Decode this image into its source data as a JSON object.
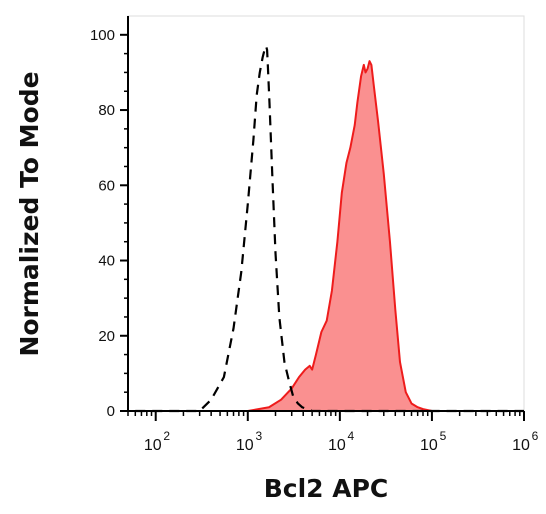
{
  "chart_data": {
    "type": "area",
    "title": "",
    "xlabel": "Bcl2 APC",
    "ylabel": "Normalized To Mode",
    "xscale": "log",
    "xlim": [
      50,
      1000000
    ],
    "ylim": [
      0,
      105
    ],
    "yticks": [
      {
        "value": 0,
        "label": "0"
      },
      {
        "value": 20,
        "label": "20"
      },
      {
        "value": 40,
        "label": "40"
      },
      {
        "value": 60,
        "label": "60"
      },
      {
        "value": 80,
        "label": "80"
      },
      {
        "value": 100,
        "label": "100"
      }
    ],
    "xticks": [
      {
        "value": 100,
        "base": "10",
        "exp": "2"
      },
      {
        "value": 1000,
        "base": "10",
        "exp": "3"
      },
      {
        "value": 10000,
        "base": "10",
        "exp": "4"
      },
      {
        "value": 100000,
        "base": "10",
        "exp": "5"
      },
      {
        "value": 1000000,
        "base": "10",
        "exp": "6"
      }
    ],
    "grid": false,
    "legend": "none",
    "series": [
      {
        "style": "dashed-line",
        "color": "#000000",
        "x": [
          60,
          150,
          300,
          400,
          550,
          700,
          850,
          1000,
          1150,
          1250,
          1350,
          1450,
          1520,
          1580,
          1620,
          1650,
          1720,
          1850,
          2000,
          2200,
          2500,
          2800,
          3100,
          3500,
          3900,
          5000,
          10000,
          100000,
          1000000
        ],
        "y": [
          0,
          0,
          0,
          3,
          9,
          22,
          37,
          55,
          72,
          84,
          90,
          94,
          96,
          97,
          96,
          92,
          82,
          62,
          42,
          25,
          13,
          8,
          4,
          2,
          1,
          0,
          0,
          0,
          0
        ]
      },
      {
        "style": "filled",
        "color": "#ee1c1c",
        "fill": "#fa9090",
        "x": [
          60,
          1000,
          1700,
          2300,
          3000,
          3600,
          4200,
          4700,
          5000,
          5500,
          6300,
          7200,
          8200,
          9400,
          10500,
          11800,
          13000,
          14500,
          15500,
          17000,
          18200,
          19000,
          20000,
          21000,
          22000,
          23500,
          26000,
          30000,
          35000,
          40000,
          45000,
          52000,
          60000,
          70000,
          80000,
          100000,
          1000000
        ],
        "y": [
          0,
          0,
          1,
          3,
          6,
          9,
          11,
          12,
          11,
          15,
          21,
          24,
          32,
          45,
          58,
          66,
          70,
          76,
          82,
          89,
          92,
          90,
          91,
          93,
          92,
          86,
          77,
          63,
          45,
          27,
          13,
          5,
          2,
          1,
          0.5,
          0,
          0
        ]
      }
    ]
  }
}
